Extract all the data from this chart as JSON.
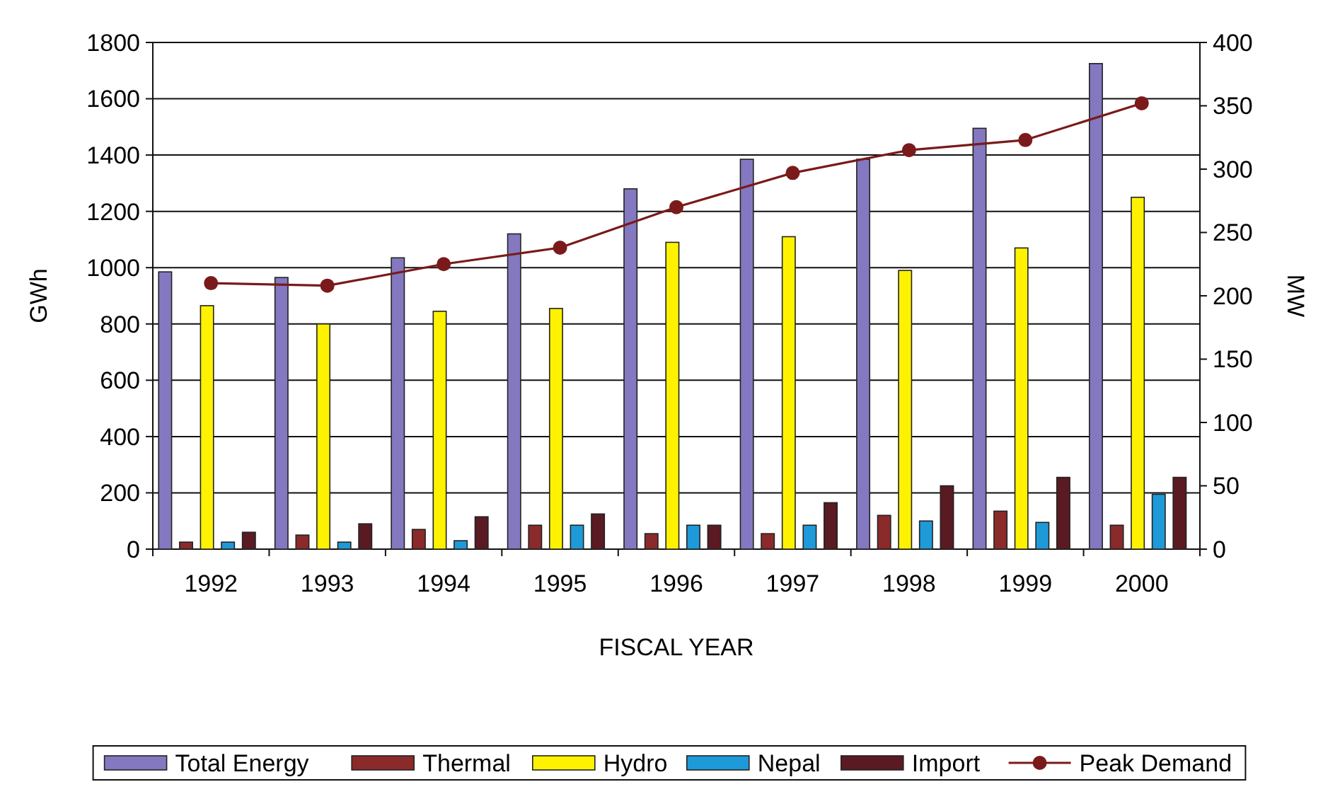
{
  "chart_data": {
    "type": "bar",
    "xlabel": "FISCAL YEAR",
    "ylabel": "GWh",
    "y2label": "MW",
    "categories": [
      "1992",
      "1993",
      "1994",
      "1995",
      "1996",
      "1997",
      "1998",
      "1999",
      "2000"
    ],
    "series": [
      {
        "name": "Total Energy",
        "color": "#8478c0",
        "values": [
          985,
          965,
          1035,
          1120,
          1280,
          1385,
          1385,
          1495,
          1725
        ]
      },
      {
        "name": "Thermal",
        "color": "#8b2a2a",
        "values": [
          25,
          50,
          70,
          85,
          55,
          55,
          120,
          135,
          85
        ]
      },
      {
        "name": "Hydro",
        "color": "#fff200",
        "values": [
          865,
          800,
          845,
          855,
          1090,
          1110,
          990,
          1070,
          1250
        ]
      },
      {
        "name": "Nepal",
        "color": "#1e9ad8",
        "values": [
          25,
          25,
          30,
          85,
          85,
          85,
          100,
          95,
          195
        ]
      },
      {
        "name": "Import",
        "color": "#5a1a22",
        "values": [
          60,
          90,
          115,
          125,
          85,
          165,
          225,
          255,
          255
        ]
      },
      {
        "name": "Peak Demand",
        "type": "line",
        "axis": "y2",
        "color": "#7a1a1a",
        "marker": "circle",
        "values": [
          210,
          208,
          225,
          238,
          270,
          297,
          315,
          323,
          352
        ]
      }
    ],
    "ylim": [
      0,
      1800
    ],
    "yticks": [
      0,
      200,
      400,
      600,
      800,
      1000,
      1200,
      1400,
      1600,
      1800
    ],
    "y2lim": [
      0,
      400
    ],
    "y2ticks": [
      0,
      50,
      100,
      150,
      200,
      250,
      300,
      350,
      400
    ],
    "grid": "y",
    "legend": "bottom"
  }
}
